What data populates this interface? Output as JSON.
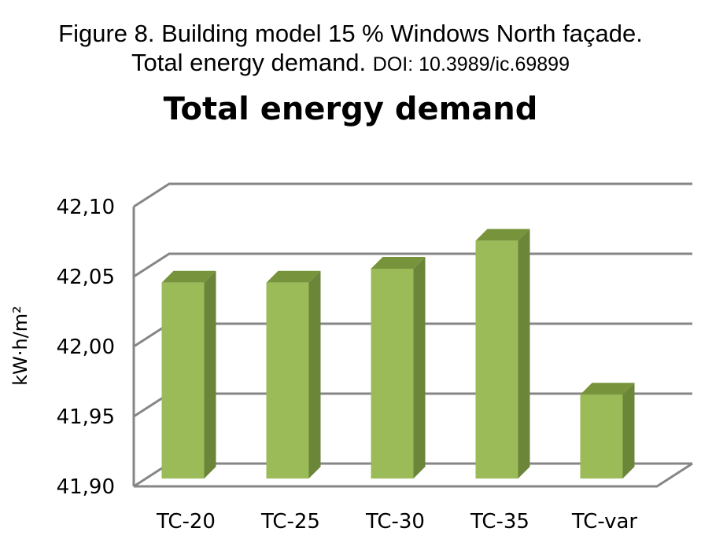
{
  "caption": {
    "line1": "Figure 8. Building model 15 % Windows North façade.",
    "line2": "Total energy demand.",
    "doi": "DOI: 10.3989/ic.69899"
  },
  "chart_data": {
    "type": "bar",
    "title": "Total energy demand",
    "ylabel": "kW·h/m²",
    "categories": [
      "TC-20",
      "TC-25",
      "TC-30",
      "TC-35",
      "TC-var"
    ],
    "values": [
      42.04,
      42.04,
      42.05,
      42.07,
      41.96
    ],
    "ylim": [
      41.9,
      42.1
    ],
    "yticks": [
      41.9,
      41.95,
      42.0,
      42.05,
      42.1
    ],
    "ytick_labels": [
      "41,90",
      "41,95",
      "42,00",
      "42,05",
      "42,10"
    ],
    "grid": true,
    "style": "3d-column",
    "colors": {
      "front": "#9BBB59",
      "side": "#6B8539",
      "top": "#77933C",
      "grid": "#868686"
    }
  }
}
